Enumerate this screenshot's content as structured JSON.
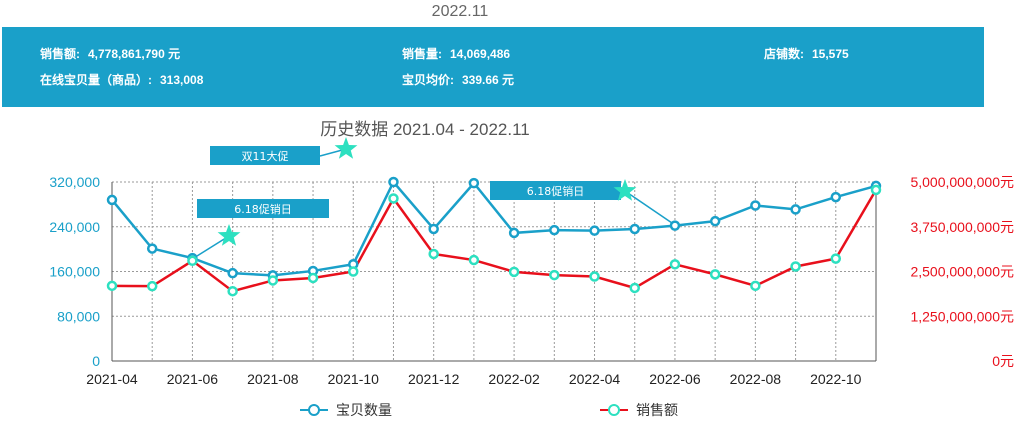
{
  "header": {
    "period": "2022.11"
  },
  "stats": {
    "sales_amount_label": "销售额:",
    "sales_amount_value": "4,778,861,790 元",
    "sales_volume_label": "销售量:",
    "sales_volume_value": "14,069,486",
    "store_count_label": "店铺数:",
    "store_count_value": "15,575",
    "online_items_label": "在线宝贝量（商品）:",
    "online_items_value": "313,008",
    "avg_price_label": "宝贝均价:",
    "avg_price_value": "339.66 元"
  },
  "colors": {
    "banner": "#1aa0c9",
    "item_count": "#1aa0c9",
    "sales": "#e8101c",
    "sales_marker": "#2de0c0",
    "star": "#2de0c0"
  },
  "chart_data": {
    "type": "line",
    "title": "历史数据 2021.04 - 2022.11",
    "x": [
      "2021-04",
      "2021-05",
      "2021-06",
      "2021-07",
      "2021-08",
      "2021-09",
      "2021-10",
      "2021-11",
      "2021-12",
      "2022-01",
      "2022-02",
      "2022-03",
      "2022-04",
      "2022-05",
      "2022-06",
      "2022-07",
      "2022-08",
      "2022-09",
      "2022-10",
      "2022-11"
    ],
    "x_tick_labels": [
      "2021-04",
      "2021-06",
      "2021-08",
      "2021-10",
      "2021-12",
      "2022-02",
      "2022-04",
      "2022-06",
      "2022-08",
      "2022-10"
    ],
    "y_left": {
      "ticks": [
        "0",
        "80,000",
        "160,000",
        "240,000",
        "320,000"
      ],
      "range": [
        0,
        320000
      ]
    },
    "y_right": {
      "ticks": [
        "0元",
        "1,250,000,000元",
        "2,500,000,000元",
        "3,750,000,000元",
        "5,000,000,000元"
      ],
      "range": [
        0,
        5000000000
      ]
    },
    "grid": true,
    "legend_position": "bottom",
    "series": [
      {
        "name": "宝贝数量",
        "axis": "left",
        "values": [
          288000,
          201000,
          184000,
          157000,
          153000,
          161000,
          173000,
          320000,
          236000,
          318000,
          229000,
          234000,
          233000,
          236000,
          242000,
          250000,
          278000,
          271000,
          293000,
          313008
        ]
      },
      {
        "name": "销售额",
        "axis": "right",
        "values": [
          2100000000,
          2090000000,
          2800000000,
          1950000000,
          2250000000,
          2320000000,
          2500000000,
          4540000000,
          2990000000,
          2820000000,
          2490000000,
          2400000000,
          2360000000,
          2040000000,
          2700000000,
          2420000000,
          2100000000,
          2640000000,
          2860000000,
          4778861790
        ]
      }
    ],
    "annotations": [
      {
        "text": "双11大促",
        "at": "2021-10"
      },
      {
        "text": "6.18促销日",
        "at": "2021-07"
      },
      {
        "text": "6.18促销日",
        "at": "2022-05"
      }
    ]
  }
}
